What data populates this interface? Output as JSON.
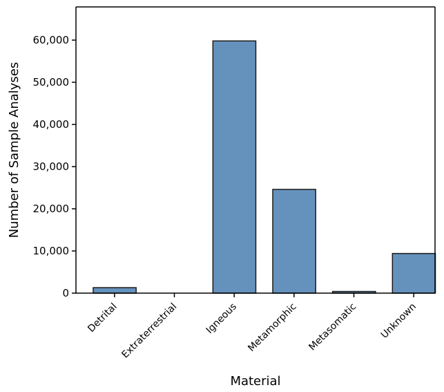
{
  "chart_data": {
    "type": "bar",
    "categories": [
      "Detrital",
      "Extraterrestrial",
      "Igneous",
      "Metamorphic",
      "Metasomatic",
      "Unknown"
    ],
    "values": [
      1300,
      0,
      59800,
      24600,
      400,
      9400
    ],
    "title": "",
    "xlabel": "Material",
    "ylabel": "Number of Sample Analyses",
    "ylim": [
      0,
      60000
    ],
    "yticks": [
      0,
      10000,
      20000,
      30000,
      40000,
      50000,
      60000
    ],
    "ytick_labels": [
      "0",
      "10,000",
      "20,000",
      "30,000",
      "40,000",
      "50,000",
      "60,000"
    ],
    "bar_color": "#6592bd",
    "bar_edge_color": "#1a1a1a",
    "grid": false,
    "legend": "none"
  }
}
